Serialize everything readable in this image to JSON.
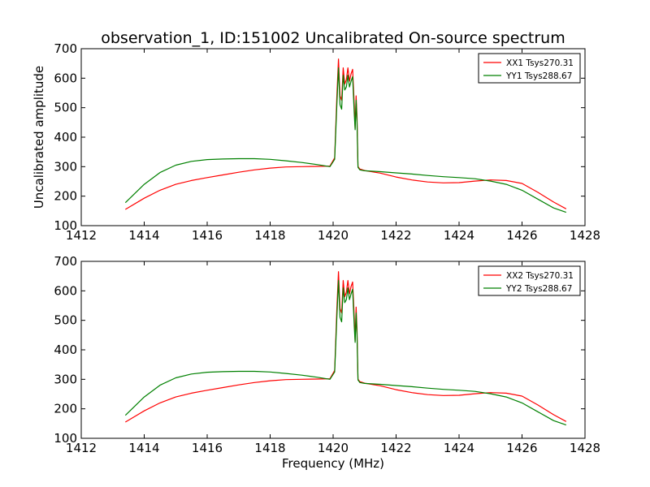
{
  "chart_data": {
    "type": "line",
    "title": "observation_1, ID:151002 Uncalibrated On-source spectrum",
    "xlabel": "Frequency (MHz)",
    "ylabel": "Uncalibrated amplitude",
    "xlim": [
      1412,
      1428
    ],
    "ylim": [
      100,
      700
    ],
    "xticks": [
      1412,
      1414,
      1416,
      1418,
      1420,
      1422,
      1424,
      1426,
      1428
    ],
    "yticks": [
      100,
      200,
      300,
      400,
      500,
      600,
      700
    ],
    "colors": {
      "xx": "#ff0000",
      "yy": "#008000"
    },
    "legend_position": "top-right",
    "panels": [
      {
        "legend": [
          "XX1 Tsys270.31",
          "YY1 Tsys288.67"
        ],
        "series": [
          {
            "name": "XX1 Tsys270.31",
            "x": [
              1413.4,
              1414.0,
              1414.5,
              1415.0,
              1415.5,
              1416.0,
              1416.5,
              1417.0,
              1417.5,
              1418.0,
              1418.5,
              1419.0,
              1419.5,
              1419.9,
              1420.05,
              1420.12,
              1420.17,
              1420.22,
              1420.27,
              1420.32,
              1420.37,
              1420.42,
              1420.47,
              1420.52,
              1420.57,
              1420.62,
              1420.67,
              1420.7,
              1420.73,
              1420.76,
              1420.79,
              1420.85,
              1421.0,
              1421.5,
              1422.0,
              1422.5,
              1423.0,
              1423.5,
              1424.0,
              1424.5,
              1425.0,
              1425.5,
              1426.0,
              1426.5,
              1427.0,
              1427.4
            ],
            "y": [
              155,
              193,
              220,
              240,
              253,
              263,
              272,
              281,
              289,
              295,
              299,
              300,
              301,
              302,
              330,
              540,
              665,
              540,
              525,
              635,
              580,
              595,
              635,
              590,
              615,
              630,
              510,
              430,
              540,
              470,
              300,
              292,
              287,
              278,
              265,
              255,
              248,
              245,
              246,
              251,
              255,
              253,
              243,
              213,
              180,
              157
            ]
          },
          {
            "name": "YY1 Tsys288.67",
            "x": [
              1413.4,
              1414.0,
              1414.5,
              1415.0,
              1415.5,
              1416.0,
              1416.5,
              1417.0,
              1417.5,
              1418.0,
              1418.5,
              1419.0,
              1419.5,
              1419.9,
              1420.05,
              1420.12,
              1420.17,
              1420.22,
              1420.27,
              1420.32,
              1420.37,
              1420.42,
              1420.47,
              1420.52,
              1420.57,
              1420.62,
              1420.67,
              1420.7,
              1420.73,
              1420.76,
              1420.79,
              1420.85,
              1421.0,
              1421.5,
              1422.0,
              1422.5,
              1423.0,
              1423.5,
              1424.0,
              1424.5,
              1425.0,
              1425.5,
              1426.0,
              1426.5,
              1427.0,
              1427.4
            ],
            "y": [
              178,
              240,
              280,
              305,
              318,
              324,
              326,
              327,
              327,
              325,
              320,
              314,
              307,
              300,
              325,
              510,
              635,
              510,
              495,
              610,
              560,
              570,
              610,
              570,
              590,
              605,
              480,
              425,
              525,
              450,
              298,
              289,
              286,
              283,
              279,
              275,
              270,
              266,
              263,
              259,
              251,
              240,
              220,
              190,
              160,
              145
            ]
          }
        ]
      },
      {
        "legend": [
          "XX2 Tsys270.31",
          "YY2 Tsys288.67"
        ],
        "series": [
          {
            "name": "XX2 Tsys270.31",
            "x": [
              1413.4,
              1414.0,
              1414.5,
              1415.0,
              1415.5,
              1416.0,
              1416.5,
              1417.0,
              1417.5,
              1418.0,
              1418.5,
              1419.0,
              1419.5,
              1419.9,
              1420.05,
              1420.12,
              1420.17,
              1420.22,
              1420.27,
              1420.32,
              1420.37,
              1420.42,
              1420.47,
              1420.52,
              1420.57,
              1420.62,
              1420.67,
              1420.7,
              1420.73,
              1420.76,
              1420.79,
              1420.85,
              1421.0,
              1421.5,
              1422.0,
              1422.5,
              1423.0,
              1423.5,
              1424.0,
              1424.5,
              1425.0,
              1425.5,
              1426.0,
              1426.5,
              1427.0,
              1427.4
            ],
            "y": [
              155,
              193,
              220,
              240,
              253,
              263,
              272,
              281,
              289,
              295,
              299,
              300,
              301,
              302,
              330,
              540,
              665,
              540,
              525,
              635,
              580,
              595,
              635,
              590,
              615,
              630,
              510,
              430,
              545,
              470,
              300,
              292,
              287,
              278,
              265,
              255,
              248,
              245,
              246,
              251,
              255,
              253,
              243,
              213,
              180,
              157
            ]
          },
          {
            "name": "YY2 Tsys288.67",
            "x": [
              1413.4,
              1414.0,
              1414.5,
              1415.0,
              1415.5,
              1416.0,
              1416.5,
              1417.0,
              1417.5,
              1418.0,
              1418.5,
              1419.0,
              1419.5,
              1419.9,
              1420.05,
              1420.12,
              1420.17,
              1420.22,
              1420.27,
              1420.32,
              1420.37,
              1420.42,
              1420.47,
              1420.52,
              1420.57,
              1420.62,
              1420.67,
              1420.7,
              1420.73,
              1420.76,
              1420.79,
              1420.85,
              1421.0,
              1421.5,
              1422.0,
              1422.5,
              1423.0,
              1423.5,
              1424.0,
              1424.5,
              1425.0,
              1425.5,
              1426.0,
              1426.5,
              1427.0,
              1427.4
            ],
            "y": [
              178,
              240,
              280,
              305,
              318,
              324,
              326,
              327,
              327,
              325,
              320,
              314,
              307,
              300,
              325,
              510,
              635,
              510,
              495,
              610,
              560,
              570,
              610,
              570,
              590,
              605,
              480,
              425,
              525,
              450,
              298,
              289,
              286,
              283,
              279,
              275,
              270,
              266,
              263,
              259,
              251,
              240,
              220,
              190,
              160,
              145
            ]
          }
        ]
      }
    ]
  }
}
